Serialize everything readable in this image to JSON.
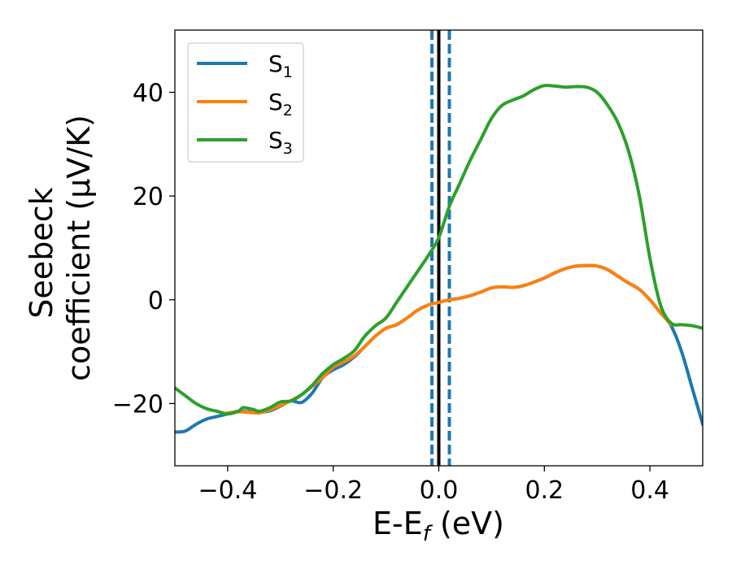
{
  "chart_data": {
    "type": "line",
    "xlabel": {
      "base": "E-E",
      "sub": "f",
      "unit": " (eV)"
    },
    "ylabel": {
      "line1": "Seebeck",
      "line2": "coefficient  (μV/K)"
    },
    "xlim": [
      -0.5,
      0.5
    ],
    "ylim": [
      -32,
      52
    ],
    "xticks": [
      -0.4,
      -0.2,
      0.0,
      0.2,
      0.4
    ],
    "xtick_labels": [
      "−0.4",
      "−0.2",
      "0.0",
      "0.2",
      "0.4"
    ],
    "yticks": [
      -20,
      0,
      20,
      40
    ],
    "ytick_labels": [
      "−20",
      "0",
      "20",
      "40"
    ],
    "grid": false,
    "legend_position": "upper-left",
    "vlines": [
      {
        "x": 0.0,
        "style": "solid",
        "color": "#000000"
      },
      {
        "x": -0.013,
        "style": "dashed",
        "color": "#1f77b4"
      },
      {
        "x": 0.02,
        "style": "dashed",
        "color": "#1f77b4"
      }
    ],
    "series": [
      {
        "name": "S",
        "sub": "1",
        "color": "#1f77b4",
        "points": [
          [
            -0.5,
            -25.5
          ],
          [
            -0.48,
            -25.3
          ],
          [
            -0.46,
            -24
          ],
          [
            -0.44,
            -23
          ],
          [
            -0.42,
            -22.5
          ],
          [
            -0.4,
            -22
          ],
          [
            -0.38,
            -21.5
          ],
          [
            -0.36,
            -21.6
          ],
          [
            -0.34,
            -21.7
          ],
          [
            -0.32,
            -21.4
          ],
          [
            -0.3,
            -20.5
          ],
          [
            -0.28,
            -19.5
          ],
          [
            -0.26,
            -19.8
          ],
          [
            -0.24,
            -18
          ],
          [
            -0.22,
            -15
          ],
          [
            -0.2,
            -13.5
          ],
          [
            -0.18,
            -12.5
          ],
          [
            -0.16,
            -11
          ],
          [
            -0.14,
            -9
          ],
          [
            -0.12,
            -7
          ],
          [
            -0.1,
            -5.5
          ],
          [
            -0.08,
            -4.8
          ],
          [
            -0.06,
            -3.5
          ],
          [
            -0.04,
            -2
          ],
          [
            -0.02,
            -1
          ],
          [
            0.0,
            -0.5
          ],
          [
            0.02,
            0
          ],
          [
            0.04,
            0.3
          ],
          [
            0.06,
            0.8
          ],
          [
            0.08,
            1.5
          ],
          [
            0.1,
            2.3
          ],
          [
            0.12,
            2.5
          ],
          [
            0.14,
            2.4
          ],
          [
            0.16,
            2.7
          ],
          [
            0.18,
            3.4
          ],
          [
            0.2,
            4.2
          ],
          [
            0.22,
            5.2
          ],
          [
            0.24,
            6
          ],
          [
            0.26,
            6.5
          ],
          [
            0.28,
            6.6
          ],
          [
            0.3,
            6.5
          ],
          [
            0.32,
            5.8
          ],
          [
            0.34,
            4.5
          ],
          [
            0.36,
            3.2
          ],
          [
            0.38,
            2
          ],
          [
            0.4,
            0
          ],
          [
            0.42,
            -2.5
          ],
          [
            0.44,
            -5
          ],
          [
            0.46,
            -10
          ],
          [
            0.48,
            -17
          ],
          [
            0.5,
            -24
          ]
        ]
      },
      {
        "name": "S",
        "sub": "2",
        "color": "#ff7f0e",
        "points": [
          [
            -0.4,
            -21.8
          ],
          [
            -0.38,
            -21.6
          ],
          [
            -0.36,
            -21.7
          ],
          [
            -0.34,
            -21.8
          ],
          [
            -0.32,
            -21.2
          ],
          [
            -0.3,
            -20.4
          ],
          [
            -0.28,
            -19.4
          ],
          [
            -0.26,
            -18.3
          ],
          [
            -0.24,
            -16.7
          ],
          [
            -0.22,
            -15
          ],
          [
            -0.2,
            -13
          ],
          [
            -0.18,
            -12
          ],
          [
            -0.16,
            -10.8
          ],
          [
            -0.14,
            -9
          ],
          [
            -0.12,
            -7
          ],
          [
            -0.1,
            -5.5
          ],
          [
            -0.08,
            -4.8
          ],
          [
            -0.06,
            -3.5
          ],
          [
            -0.04,
            -2
          ],
          [
            -0.02,
            -1
          ],
          [
            0.0,
            -0.5
          ],
          [
            0.02,
            0
          ],
          [
            0.04,
            0.3
          ],
          [
            0.06,
            0.8
          ],
          [
            0.08,
            1.5
          ],
          [
            0.1,
            2.3
          ],
          [
            0.12,
            2.5
          ],
          [
            0.14,
            2.4
          ],
          [
            0.16,
            2.7
          ],
          [
            0.18,
            3.4
          ],
          [
            0.2,
            4.2
          ],
          [
            0.22,
            5.2
          ],
          [
            0.24,
            6
          ],
          [
            0.26,
            6.5
          ],
          [
            0.28,
            6.6
          ],
          [
            0.3,
            6.5
          ],
          [
            0.32,
            5.8
          ],
          [
            0.34,
            4.5
          ],
          [
            0.36,
            3.2
          ],
          [
            0.38,
            2
          ],
          [
            0.4,
            0
          ],
          [
            0.42,
            -2.5
          ],
          [
            0.44,
            -4.8
          ]
        ]
      },
      {
        "name": "S",
        "sub": "3",
        "color": "#2ca02c",
        "points": [
          [
            -0.5,
            -17
          ],
          [
            -0.48,
            -18.5
          ],
          [
            -0.46,
            -20
          ],
          [
            -0.44,
            -21
          ],
          [
            -0.42,
            -21.5
          ],
          [
            -0.4,
            -22
          ],
          [
            -0.38,
            -21.5
          ],
          [
            -0.37,
            -20.8
          ],
          [
            -0.35,
            -21.2
          ],
          [
            -0.34,
            -21.5
          ],
          [
            -0.32,
            -20.8
          ],
          [
            -0.3,
            -19.7
          ],
          [
            -0.28,
            -19.5
          ],
          [
            -0.26,
            -18.3
          ],
          [
            -0.24,
            -16.5
          ],
          [
            -0.22,
            -14.2
          ],
          [
            -0.2,
            -12.5
          ],
          [
            -0.18,
            -11.3
          ],
          [
            -0.16,
            -9.8
          ],
          [
            -0.14,
            -7
          ],
          [
            -0.12,
            -5
          ],
          [
            -0.1,
            -3.5
          ],
          [
            -0.08,
            -0.5
          ],
          [
            -0.06,
            2.5
          ],
          [
            -0.04,
            5.5
          ],
          [
            -0.02,
            8.5
          ],
          [
            0.0,
            12
          ],
          [
            0.02,
            18
          ],
          [
            0.04,
            22.5
          ],
          [
            0.06,
            27
          ],
          [
            0.08,
            31
          ],
          [
            0.1,
            35
          ],
          [
            0.12,
            37.5
          ],
          [
            0.14,
            38.5
          ],
          [
            0.16,
            39.3
          ],
          [
            0.18,
            40.5
          ],
          [
            0.2,
            41.3
          ],
          [
            0.22,
            41.2
          ],
          [
            0.24,
            41
          ],
          [
            0.26,
            41.1
          ],
          [
            0.28,
            41
          ],
          [
            0.3,
            40
          ],
          [
            0.32,
            37.5
          ],
          [
            0.34,
            34
          ],
          [
            0.36,
            28.5
          ],
          [
            0.38,
            20
          ],
          [
            0.4,
            8
          ],
          [
            0.42,
            -1
          ],
          [
            0.44,
            -4.5
          ],
          [
            0.46,
            -4.8
          ],
          [
            0.48,
            -5
          ],
          [
            0.5,
            -5.5
          ]
        ]
      }
    ]
  }
}
